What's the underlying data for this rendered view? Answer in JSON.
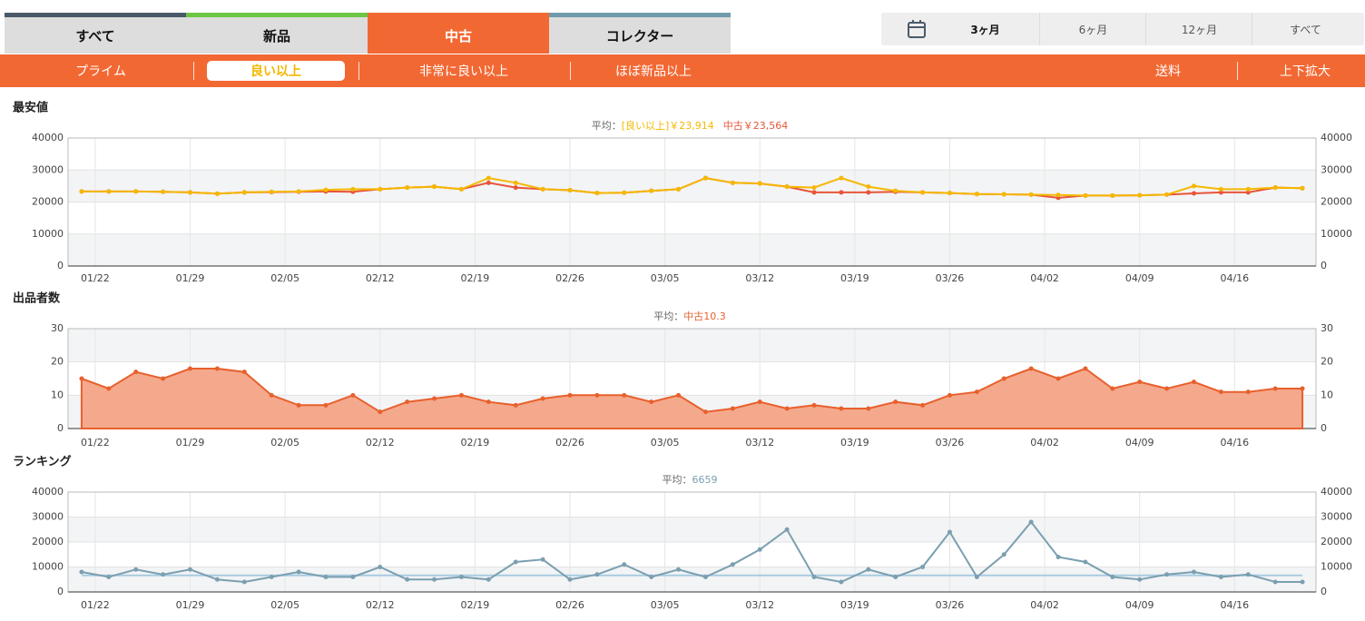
{
  "tabs": [
    "すべて",
    "新品",
    "中古",
    "コレクター"
  ],
  "period_options": [
    "3ヶ月",
    "6ヶ月",
    "12ヶ月",
    "すべて"
  ],
  "subtabs": [
    "プライム",
    "良い以上",
    "非常に良い以上",
    "ほぼ新品以上"
  ],
  "right_buttons": [
    "送料",
    "上下拡大"
  ],
  "chart_data": [
    {
      "type": "line",
      "title": "最安値",
      "average_prefix": "平均：",
      "x": [
        "01/21",
        "01/23",
        "01/25",
        "01/27",
        "01/29",
        "01/31",
        "02/02",
        "02/04",
        "02/06",
        "02/08",
        "02/10",
        "02/12",
        "02/14",
        "02/16",
        "02/18",
        "02/20",
        "02/22",
        "02/24",
        "02/26",
        "02/28",
        "03/02",
        "03/04",
        "03/06",
        "03/08",
        "03/10",
        "03/12",
        "03/14",
        "03/16",
        "03/18",
        "03/20",
        "03/22",
        "03/24",
        "03/26",
        "03/28",
        "03/30",
        "04/01",
        "04/03",
        "04/05",
        "04/07",
        "04/09",
        "04/11",
        "04/13",
        "04/15",
        "04/17",
        "04/19",
        "04/21"
      ],
      "series": [
        {
          "name": "[良い以上]",
          "color": "#f5b800",
          "average": 23914,
          "average_label": "￥23,914",
          "values": [
            23300,
            23300,
            23300,
            23200,
            23000,
            22600,
            23000,
            23200,
            23300,
            23800,
            24000,
            24000,
            24500,
            24800,
            24000,
            27500,
            26000,
            24000,
            23700,
            22800,
            22900,
            23500,
            24000,
            27500,
            26000,
            25800,
            24800,
            24500,
            27500,
            24800,
            23500,
            23000,
            22800,
            22500,
            22400,
            22300,
            22200,
            22000,
            22000,
            22100,
            22300,
            25000,
            24000,
            24000,
            24500,
            24300
          ]
        },
        {
          "name": "中古",
          "color": "#e8553a",
          "average": 23564,
          "average_label": "￥23,564",
          "values": [
            23300,
            23300,
            23300,
            23200,
            23000,
            22600,
            23000,
            23100,
            23200,
            23300,
            23200,
            24000,
            24500,
            24800,
            24000,
            26000,
            24500,
            24000,
            23700,
            22800,
            22900,
            23500,
            24000,
            27500,
            26000,
            25800,
            24800,
            23000,
            23000,
            23000,
            23200,
            23000,
            22800,
            22500,
            22400,
            22300,
            21300,
            22000,
            22000,
            22100,
            22300,
            22700,
            23000,
            23000,
            24500,
            24300
          ]
        }
      ],
      "xlim": [
        "01/20",
        "04/22"
      ],
      "xticks": [
        "01/22",
        "01/29",
        "02/05",
        "02/12",
        "02/19",
        "02/26",
        "03/05",
        "03/12",
        "03/19",
        "03/26",
        "04/02",
        "04/09",
        "04/16"
      ],
      "ylim": [
        0,
        40000
      ],
      "yticks": [
        0,
        10000,
        20000,
        30000,
        40000
      ],
      "grid": true
    },
    {
      "type": "area",
      "title": "出品者数",
      "average_prefix": "平均：",
      "x": [
        "01/21",
        "01/23",
        "01/25",
        "01/27",
        "01/29",
        "01/31",
        "02/02",
        "02/04",
        "02/06",
        "02/08",
        "02/10",
        "02/12",
        "02/14",
        "02/16",
        "02/18",
        "02/20",
        "02/22",
        "02/24",
        "02/26",
        "02/28",
        "03/02",
        "03/04",
        "03/06",
        "03/08",
        "03/10",
        "03/12",
        "03/14",
        "03/16",
        "03/18",
        "03/20",
        "03/22",
        "03/24",
        "03/26",
        "03/28",
        "03/30",
        "04/01",
        "04/03",
        "04/05",
        "04/07",
        "04/09",
        "04/11",
        "04/13",
        "04/15",
        "04/17",
        "04/19",
        "04/21"
      ],
      "series": [
        {
          "name": "中古",
          "color": "#e8602c",
          "average": 10.3,
          "values": [
            15,
            12,
            17,
            15,
            18,
            18,
            17,
            10,
            7,
            7,
            10,
            5,
            8,
            9,
            10,
            8,
            7,
            9,
            10,
            10,
            10,
            8,
            10,
            5,
            6,
            8,
            6,
            7,
            6,
            6,
            8,
            7,
            10,
            11,
            15,
            18,
            15,
            18,
            12,
            14,
            12,
            14,
            11,
            11,
            12,
            12
          ]
        }
      ],
      "xlim": [
        "01/20",
        "04/22"
      ],
      "xticks": [
        "01/22",
        "01/29",
        "02/05",
        "02/12",
        "02/19",
        "02/26",
        "03/05",
        "03/12",
        "03/19",
        "03/26",
        "04/02",
        "04/09",
        "04/16"
      ],
      "ylim": [
        0,
        30
      ],
      "yticks": [
        0,
        10,
        20,
        30
      ],
      "grid": true
    },
    {
      "type": "line",
      "title": "ランキング",
      "average_prefix": "平均：",
      "average_line": true,
      "x": [
        "01/21",
        "01/23",
        "01/25",
        "01/27",
        "01/29",
        "01/31",
        "02/02",
        "02/04",
        "02/06",
        "02/08",
        "02/10",
        "02/12",
        "02/14",
        "02/16",
        "02/18",
        "02/20",
        "02/22",
        "02/24",
        "02/26",
        "02/28",
        "03/02",
        "03/04",
        "03/06",
        "03/08",
        "03/10",
        "03/12",
        "03/14",
        "03/16",
        "03/18",
        "03/20",
        "03/22",
        "03/24",
        "03/26",
        "03/28",
        "03/30",
        "04/01",
        "04/03",
        "04/05",
        "04/07",
        "04/09",
        "04/11",
        "04/13",
        "04/15",
        "04/17",
        "04/19",
        "04/21"
      ],
      "series": [
        {
          "color": "#7a9fb0",
          "average": 6659,
          "average_color": "#a9cbe0",
          "values": [
            8000,
            6000,
            9000,
            7000,
            9000,
            5000,
            4000,
            6000,
            8000,
            6000,
            6000,
            10000,
            5000,
            5000,
            6000,
            5000,
            12000,
            13000,
            5000,
            7000,
            11000,
            6000,
            9000,
            6000,
            11000,
            17000,
            25000,
            6000,
            4000,
            9000,
            6000,
            10000,
            24000,
            6000,
            15000,
            28000,
            14000,
            12000,
            6000,
            5000,
            7000,
            8000,
            6000,
            7000,
            4000,
            4000
          ]
        }
      ],
      "xlim": [
        "01/20",
        "04/22"
      ],
      "xticks": [
        "01/22",
        "01/29",
        "02/05",
        "02/12",
        "02/19",
        "02/26",
        "03/05",
        "03/12",
        "03/19",
        "03/26",
        "04/02",
        "04/09",
        "04/16"
      ],
      "ylim": [
        0,
        40000
      ],
      "yticks": [
        0,
        10000,
        20000,
        30000,
        40000
      ],
      "grid": true
    }
  ]
}
